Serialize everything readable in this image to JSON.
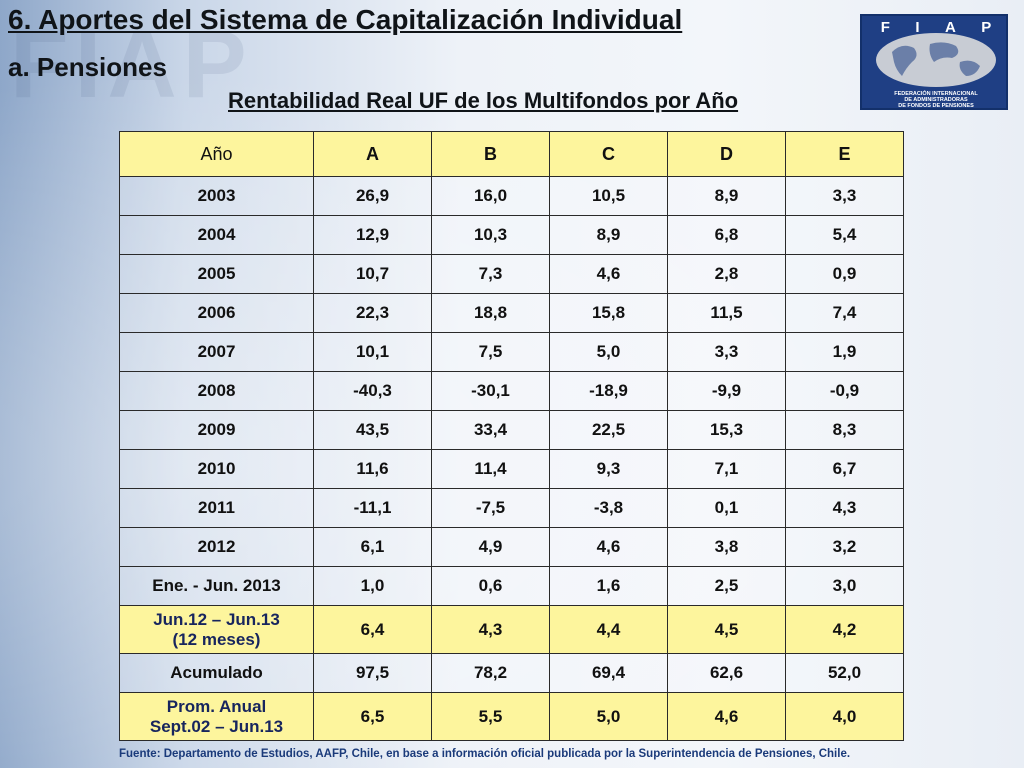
{
  "header": {
    "title": "6. Aportes del Sistema de Capitalización Individual",
    "subtitle": "a. Pensiones",
    "table_title": "Rentabilidad Real UF de los Multifondos por Año"
  },
  "watermark": "FIAP",
  "logo": {
    "letters": [
      "F",
      "I",
      "A",
      "P"
    ],
    "caption_lines": [
      "FEDERACIÓN INTERNACIONAL",
      "DE ADMINISTRADORAS",
      "DE FONDOS DE PENSIONES"
    ],
    "colors": {
      "background": "#1f3f84",
      "globe": "#c8ccd4"
    }
  },
  "table": {
    "columns": [
      "Año",
      "A",
      "B",
      "C",
      "D",
      "E"
    ],
    "rows": [
      {
        "label": "2003",
        "values": [
          "26,9",
          "16,0",
          "10,5",
          "8,9",
          "3,3"
        ]
      },
      {
        "label": "2004",
        "values": [
          "12,9",
          "10,3",
          "8,9",
          "6,8",
          "5,4"
        ]
      },
      {
        "label": "2005",
        "values": [
          "10,7",
          "7,3",
          "4,6",
          "2,8",
          "0,9"
        ]
      },
      {
        "label": "2006",
        "values": [
          "22,3",
          "18,8",
          "15,8",
          "11,5",
          "7,4"
        ]
      },
      {
        "label": "2007",
        "values": [
          "10,1",
          "7,5",
          "5,0",
          "3,3",
          "1,9"
        ]
      },
      {
        "label": "2008",
        "values": [
          "-40,3",
          "-30,1",
          "-18,9",
          "-9,9",
          "-0,9"
        ]
      },
      {
        "label": "2009",
        "values": [
          "43,5",
          "33,4",
          "22,5",
          "15,3",
          "8,3"
        ]
      },
      {
        "label": "2010",
        "values": [
          "11,6",
          "11,4",
          "9,3",
          "7,1",
          "6,7"
        ]
      },
      {
        "label": "2011",
        "values": [
          "-11,1",
          "-7,5",
          "-3,8",
          "0,1",
          "4,3"
        ]
      },
      {
        "label": "2012",
        "values": [
          "6,1",
          "4,9",
          "4,6",
          "3,8",
          "3,2"
        ]
      },
      {
        "label": "Ene. - Jun. 2013",
        "values": [
          "1,0",
          "0,6",
          "1,6",
          "2,5",
          "3,0"
        ]
      },
      {
        "label": "Jun.12 – Jun.13",
        "label2": "(12 meses)",
        "highlight": true,
        "values": [
          "6,4",
          "4,3",
          "4,4",
          "4,5",
          "4,2"
        ]
      },
      {
        "label": "Acumulado",
        "values": [
          "97,5",
          "78,2",
          "69,4",
          "62,6",
          "52,0"
        ]
      },
      {
        "label": "Prom. Anual",
        "label2": "Sept.02 – Jun.13",
        "highlight": true,
        "values": [
          "6,5",
          "5,5",
          "5,0",
          "4,6",
          "4,0"
        ]
      }
    ],
    "colors": {
      "header_fill": "#fdf59d",
      "highlight_fill": "#fdf59d",
      "highlight_label": "#17255e"
    }
  },
  "footer": "Fuente: Departamento de Estudios, AAFP, Chile, en base a información oficial publicada por la Superintendencia de Pensiones, Chile."
}
